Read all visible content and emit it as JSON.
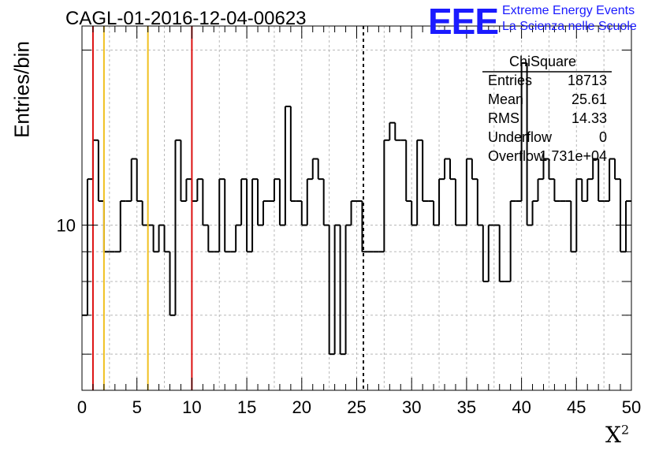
{
  "chart_title": "CAGL-01-2016-12-04-00623",
  "logo": {
    "mark": "EEE",
    "line1": "Extreme Energy Events",
    "line2": "La Scienza nelle Scuole",
    "color": "#1a1aff"
  },
  "axes": {
    "xlabel": "X",
    "xlabel_sup": "2",
    "ylabel": "Entries/bin"
  },
  "stats_box": {
    "title": "ChiSquare",
    "rows": [
      {
        "label": "Entries",
        "value": "18713"
      },
      {
        "label": "Mean",
        "value": "25.61"
      },
      {
        "label": "RMS",
        "value": "14.33"
      },
      {
        "label": "Underflow",
        "value": "0"
      },
      {
        "label": "Overflow",
        "value": "1.731e+04"
      }
    ]
  },
  "chart_data": {
    "type": "histogram",
    "title": "CAGL-01-2016-12-04-00623",
    "xlabel": "X²",
    "ylabel": "Entries/bin",
    "xlim": [
      0,
      50
    ],
    "ylim": [
      5.2,
      22
    ],
    "yscale": "log",
    "grid": true,
    "bin_width": 0.5,
    "x_ticks": [
      0,
      5,
      10,
      15,
      20,
      25,
      30,
      35,
      40,
      45,
      50
    ],
    "y_ticks_labeled": [
      10
    ],
    "values": [
      7,
      12,
      14,
      11,
      9,
      9,
      9,
      11,
      11,
      13,
      11,
      10,
      10,
      9,
      10,
      9,
      7,
      14,
      11,
      12,
      11,
      12,
      10,
      9,
      9,
      12,
      9,
      9,
      10,
      12,
      9,
      12,
      10,
      11,
      11,
      12,
      10,
      16,
      11,
      11,
      10,
      12,
      13,
      12,
      10,
      6,
      10,
      6,
      10,
      11,
      11,
      9,
      9,
      9,
      9,
      14,
      15,
      14,
      14,
      11,
      10,
      14,
      11,
      11,
      10,
      12,
      13,
      12,
      10,
      10,
      13,
      12,
      10,
      8,
      10,
      10,
      8,
      8,
      11,
      11,
      19,
      10,
      11,
      12,
      13,
      12,
      11,
      11,
      11,
      9,
      12,
      11,
      12,
      13,
      11,
      11,
      13,
      12,
      9,
      11,
      11
    ],
    "vertical_lines": [
      {
        "x": 1,
        "color": "#dd1111",
        "style": "solid"
      },
      {
        "x": 2,
        "color": "#f0c020",
        "style": "solid"
      },
      {
        "x": 6,
        "color": "#f0c020",
        "style": "solid"
      },
      {
        "x": 10,
        "color": "#dd1111",
        "style": "solid"
      },
      {
        "x": 25.61,
        "color": "#000000",
        "style": "dashed"
      }
    ]
  }
}
